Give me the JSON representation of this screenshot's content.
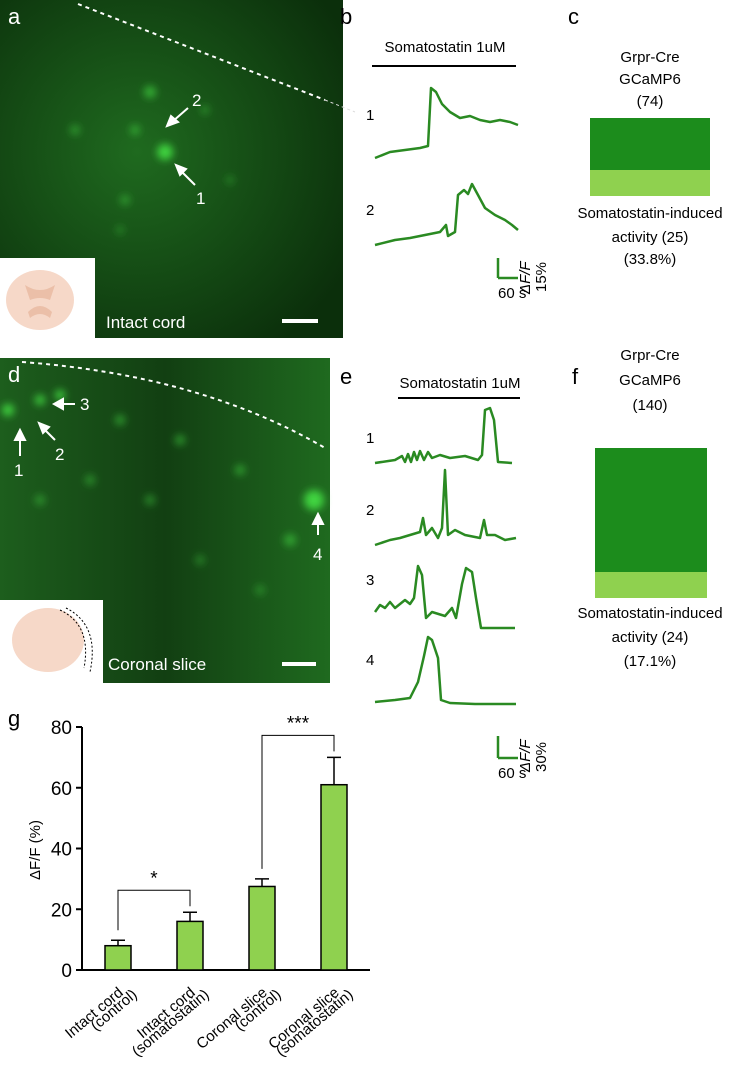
{
  "panel_a": {
    "label": "a",
    "cells": [
      "1",
      "2"
    ],
    "caption": "Intact cord"
  },
  "panel_b": {
    "label": "b",
    "stimulus": "Somatostatin 1uM",
    "traces": [
      "1",
      "2"
    ],
    "scale_time": "60 s",
    "scale_signal": "ΔF/F",
    "scale_amount": "15%"
  },
  "panel_c": {
    "label": "c",
    "lines": [
      "Grpr-Cre",
      "GCaMP6",
      "(74)"
    ],
    "result": [
      "Somatostatin-induced",
      "activity (25)",
      "(33.8%)"
    ]
  },
  "panel_d": {
    "label": "d",
    "cells": [
      "1",
      "2",
      "3",
      "4"
    ],
    "caption": "Coronal slice"
  },
  "panel_e": {
    "label": "e",
    "stimulus": "Somatostatin 1uM",
    "traces": [
      "1",
      "2",
      "3",
      "4"
    ],
    "scale_time": "60 s",
    "scale_signal": "ΔF/F",
    "scale_amount": "30%"
  },
  "panel_f": {
    "label": "f",
    "lines": [
      "Grpr-Cre",
      "GCaMP6",
      "(140)"
    ],
    "result": [
      "Somatostatin-induced",
      "activity (24)",
      "(17.1%)"
    ]
  },
  "chart_data": {
    "type": "bar",
    "panel_label": "g",
    "y_label": "ΔF/F (%)",
    "categories": [
      [
        "Intact cord",
        "(control)"
      ],
      [
        "Intact cord",
        "(somatostatin)"
      ],
      [
        "Coronal slice",
        "(control)"
      ],
      [
        "Coronal slice",
        "(somatostatin)"
      ]
    ],
    "values": [
      8,
      16,
      27.5,
      61
    ],
    "errors": [
      1.8,
      3,
      2.5,
      9
    ],
    "color": "#8fd14f",
    "ylim": [
      0,
      80
    ],
    "yticks": [
      0,
      20,
      40,
      60,
      80
    ],
    "significance": [
      {
        "label": "*",
        "from": 0,
        "to": 1
      },
      {
        "label": "***",
        "from": 2,
        "to": 3
      }
    ]
  }
}
